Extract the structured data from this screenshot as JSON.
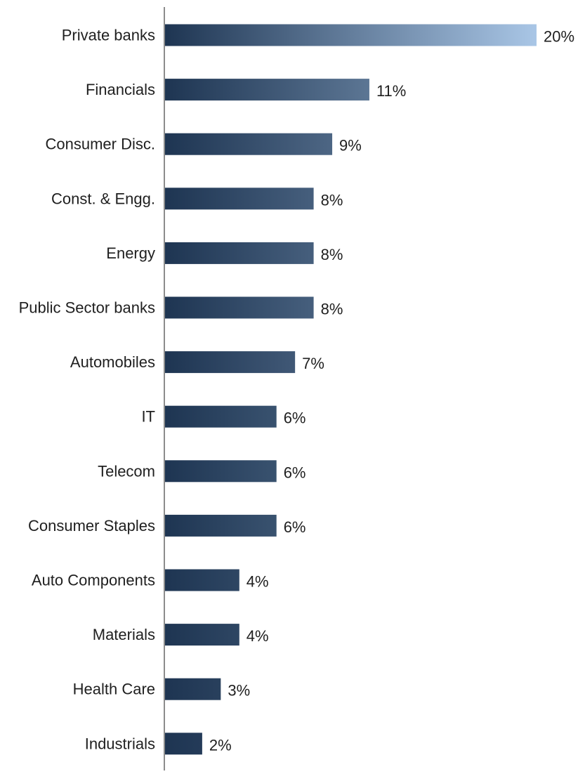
{
  "chart_data": {
    "type": "bar",
    "orientation": "horizontal",
    "title": "",
    "xlabel": "",
    "ylabel": "",
    "categories": [
      "Private banks",
      "Financials",
      "Consumer Disc.",
      "Const. & Engg.",
      "Energy",
      "Public Sector banks",
      "Automobiles",
      "IT",
      "Telecom",
      "Consumer Staples",
      "Auto Components",
      "Materials",
      "Health Care",
      "Industrials"
    ],
    "values": [
      20,
      11,
      9,
      8,
      8,
      8,
      7,
      6,
      6,
      6,
      4,
      4,
      3,
      2
    ],
    "value_labels": [
      "20%",
      "11%",
      "9%",
      "8%",
      "8%",
      "8%",
      "7%",
      "6%",
      "6%",
      "6%",
      "4%",
      "4%",
      "3%",
      "2%"
    ],
    "value_suffix": "%",
    "xlim": [
      0,
      20
    ],
    "grid": false,
    "legend": "none",
    "colors": {
      "bar_dark": "#1e3552",
      "bar_light": "#a9c6e6",
      "axis": "#8c8c8c",
      "text": "#1f1f1f"
    }
  }
}
